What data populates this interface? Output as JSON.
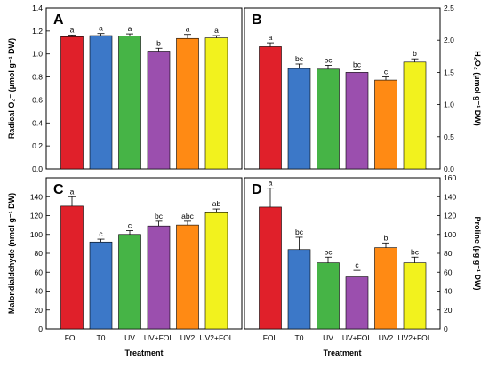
{
  "colors": [
    "#e0202a",
    "#3c78c8",
    "#46b446",
    "#9b4fae",
    "#ff8a14",
    "#f2f21e"
  ],
  "chart_data": [
    {
      "type": "bar",
      "panel": "A",
      "categories": [
        "FOL",
        "T0",
        "UV",
        "UV+FOL",
        "UV2",
        "UV2+FOL"
      ],
      "values": [
        1.15,
        1.16,
        1.155,
        1.025,
        1.135,
        1.14
      ],
      "errors": [
        0.015,
        0.018,
        0.02,
        0.025,
        0.035,
        0.02
      ],
      "significance": [
        "a",
        "a",
        "a",
        "b",
        "a",
        "a"
      ],
      "ylabel": "Radical O₂⁻ (µmol g⁻¹ DW)",
      "ylim": [
        0,
        1.4
      ],
      "yticks": [
        "0.0",
        "0.2",
        "0.4",
        "0.6",
        "0.8",
        "1.0",
        "1.2",
        "1.4"
      ]
    },
    {
      "type": "bar",
      "panel": "B",
      "categories": [
        "FOL",
        "T0",
        "UV",
        "UV+FOL",
        "UV2",
        "UV2+FOL"
      ],
      "values": [
        1.9,
        1.56,
        1.55,
        1.5,
        1.38,
        1.66
      ],
      "errors": [
        0.06,
        0.07,
        0.06,
        0.04,
        0.05,
        0.05
      ],
      "significance": [
        "a",
        "bc",
        "bc",
        "bc",
        "c",
        "b"
      ],
      "ylabel": "H₂O₂ (µmol g⁻¹ DW)",
      "ylim": [
        0,
        2.5
      ],
      "yticks": [
        "0.0",
        "0.5",
        "1.0",
        "1.5",
        "2.0",
        "2.5"
      ]
    },
    {
      "type": "bar",
      "panel": "C",
      "categories": [
        "FOL",
        "T0",
        "UV",
        "UV+FOL",
        "UV2",
        "UV2+FOL"
      ],
      "values": [
        130,
        92,
        100,
        109,
        110,
        123
      ],
      "errors": [
        10,
        3,
        4,
        5,
        4,
        4
      ],
      "significance": [
        "a",
        "c",
        "c",
        "bc",
        "abc",
        "ab"
      ],
      "ylabel": "Malondialdehyde (nmol g⁻¹ DW)",
      "xlabel": "Treatment",
      "ylim": [
        0,
        160
      ],
      "yticks": [
        "0",
        "20",
        "40",
        "60",
        "80",
        "100",
        "120",
        "140"
      ]
    },
    {
      "type": "bar",
      "panel": "D",
      "categories": [
        "FOL",
        "T0",
        "UV",
        "UV+FOL",
        "UV2",
        "UV2+FOL"
      ],
      "values": [
        129,
        84,
        70,
        55,
        86,
        70
      ],
      "errors": [
        20,
        13,
        6,
        7,
        5,
        6
      ],
      "significance": [
        "a",
        "bc",
        "bc",
        "c",
        "b",
        "bc"
      ],
      "ylabel": "Proline (µg g⁻¹ DW)",
      "xlabel": "Treatment",
      "ylim": [
        0,
        160
      ],
      "yticks": [
        "0",
        "20",
        "40",
        "60",
        "80",
        "100",
        "120",
        "140",
        "160"
      ]
    }
  ]
}
